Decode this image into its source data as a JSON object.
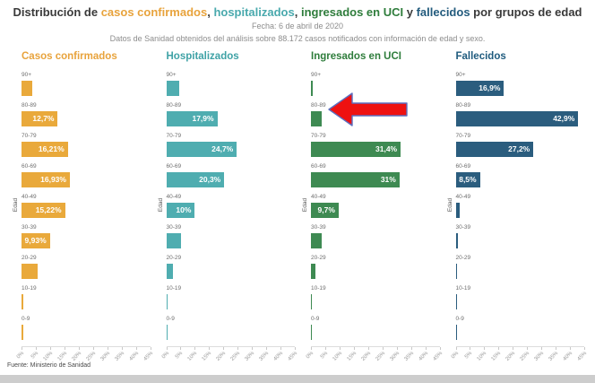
{
  "header": {
    "title_parts": [
      {
        "text": "Distribución de ",
        "color": "#3a3a3a"
      },
      {
        "text": "casos confirmados",
        "color": "#e8a33c"
      },
      {
        "text": ", ",
        "color": "#3a3a3a"
      },
      {
        "text": "hospitalizados",
        "color": "#49a9ad"
      },
      {
        "text": ", ",
        "color": "#3a3a3a"
      },
      {
        "text": "ingresados en UCI",
        "color": "#2f7d3c"
      },
      {
        "text": " y ",
        "color": "#3a3a3a"
      },
      {
        "text": "fallecidos",
        "color": "#235b7d"
      },
      {
        "text": " por grupos de edad",
        "color": "#3a3a3a"
      }
    ],
    "date_line": "Fecha: 6 de abril de 2020",
    "subtitle": "Datos de Sanidad obtenidos del análisis sobre 88.172 casos notificados con información de edad y sexo."
  },
  "chart_data": {
    "type": "bar",
    "orientation": "horizontal",
    "y_axis_label": "Edad",
    "categories": [
      "90+",
      "80-89",
      "70-79",
      "60-69",
      "40-49",
      "30-39",
      "20-29",
      "10-19",
      "0-9"
    ],
    "x_ticks": [
      "0%",
      "5%",
      "10%",
      "15%",
      "20%",
      "25%",
      "30%",
      "35%",
      "40%",
      "45%"
    ],
    "x_max": 45,
    "x_tick_step": 5,
    "grid": false,
    "charts": [
      {
        "title": "Casos confirmados",
        "title_color": "#e8a33c",
        "color": "#e9a93b",
        "values": [
          3.9,
          12.7,
          16.21,
          16.93,
          15.22,
          9.93,
          5.5,
          0.6,
          0.5
        ],
        "bar_labels": [
          "",
          "12,7%",
          "16,21%",
          "16,93%",
          "15,22%",
          "9,93%",
          "",
          "",
          ""
        ]
      },
      {
        "title": "Hospitalizados",
        "title_color": "#3fa2a6",
        "color": "#4fadb0",
        "values": [
          4.5,
          17.9,
          24.7,
          20.3,
          10,
          5.2,
          2.2,
          0.5,
          0.5
        ],
        "bar_labels": [
          "",
          "17,9%",
          "24,7%",
          "20,3%",
          "10%",
          "",
          "",
          "",
          ""
        ]
      },
      {
        "title": "Ingresados en UCI",
        "title_color": "#2f7d3c",
        "color": "#3e8a52",
        "values": [
          0.5,
          3.8,
          31.4,
          31,
          9.7,
          3.8,
          1.6,
          0.4,
          0.4
        ],
        "bar_labels": [
          "",
          "",
          "31,4%",
          "31%",
          "9,7%",
          "",
          "",
          "",
          ""
        ]
      },
      {
        "title": "Fallecidos",
        "title_color": "#1f5b7e",
        "color": "#2b5d7e",
        "values": [
          16.9,
          42.9,
          27.2,
          8.5,
          1.3,
          0.8,
          0.3,
          0,
          0
        ],
        "bar_labels": [
          "16,9%",
          "42,9%",
          "27,2%",
          "8,5%",
          "",
          "",
          "",
          "",
          ""
        ]
      }
    ]
  },
  "annotation": {
    "shape": "arrow-left",
    "points_at": "Ingresados en UCI 80-89",
    "fill": "#ee1111",
    "stroke": "#5b6fc0"
  },
  "footer": {
    "source": "Fuente: Ministerio de Sanidad"
  }
}
